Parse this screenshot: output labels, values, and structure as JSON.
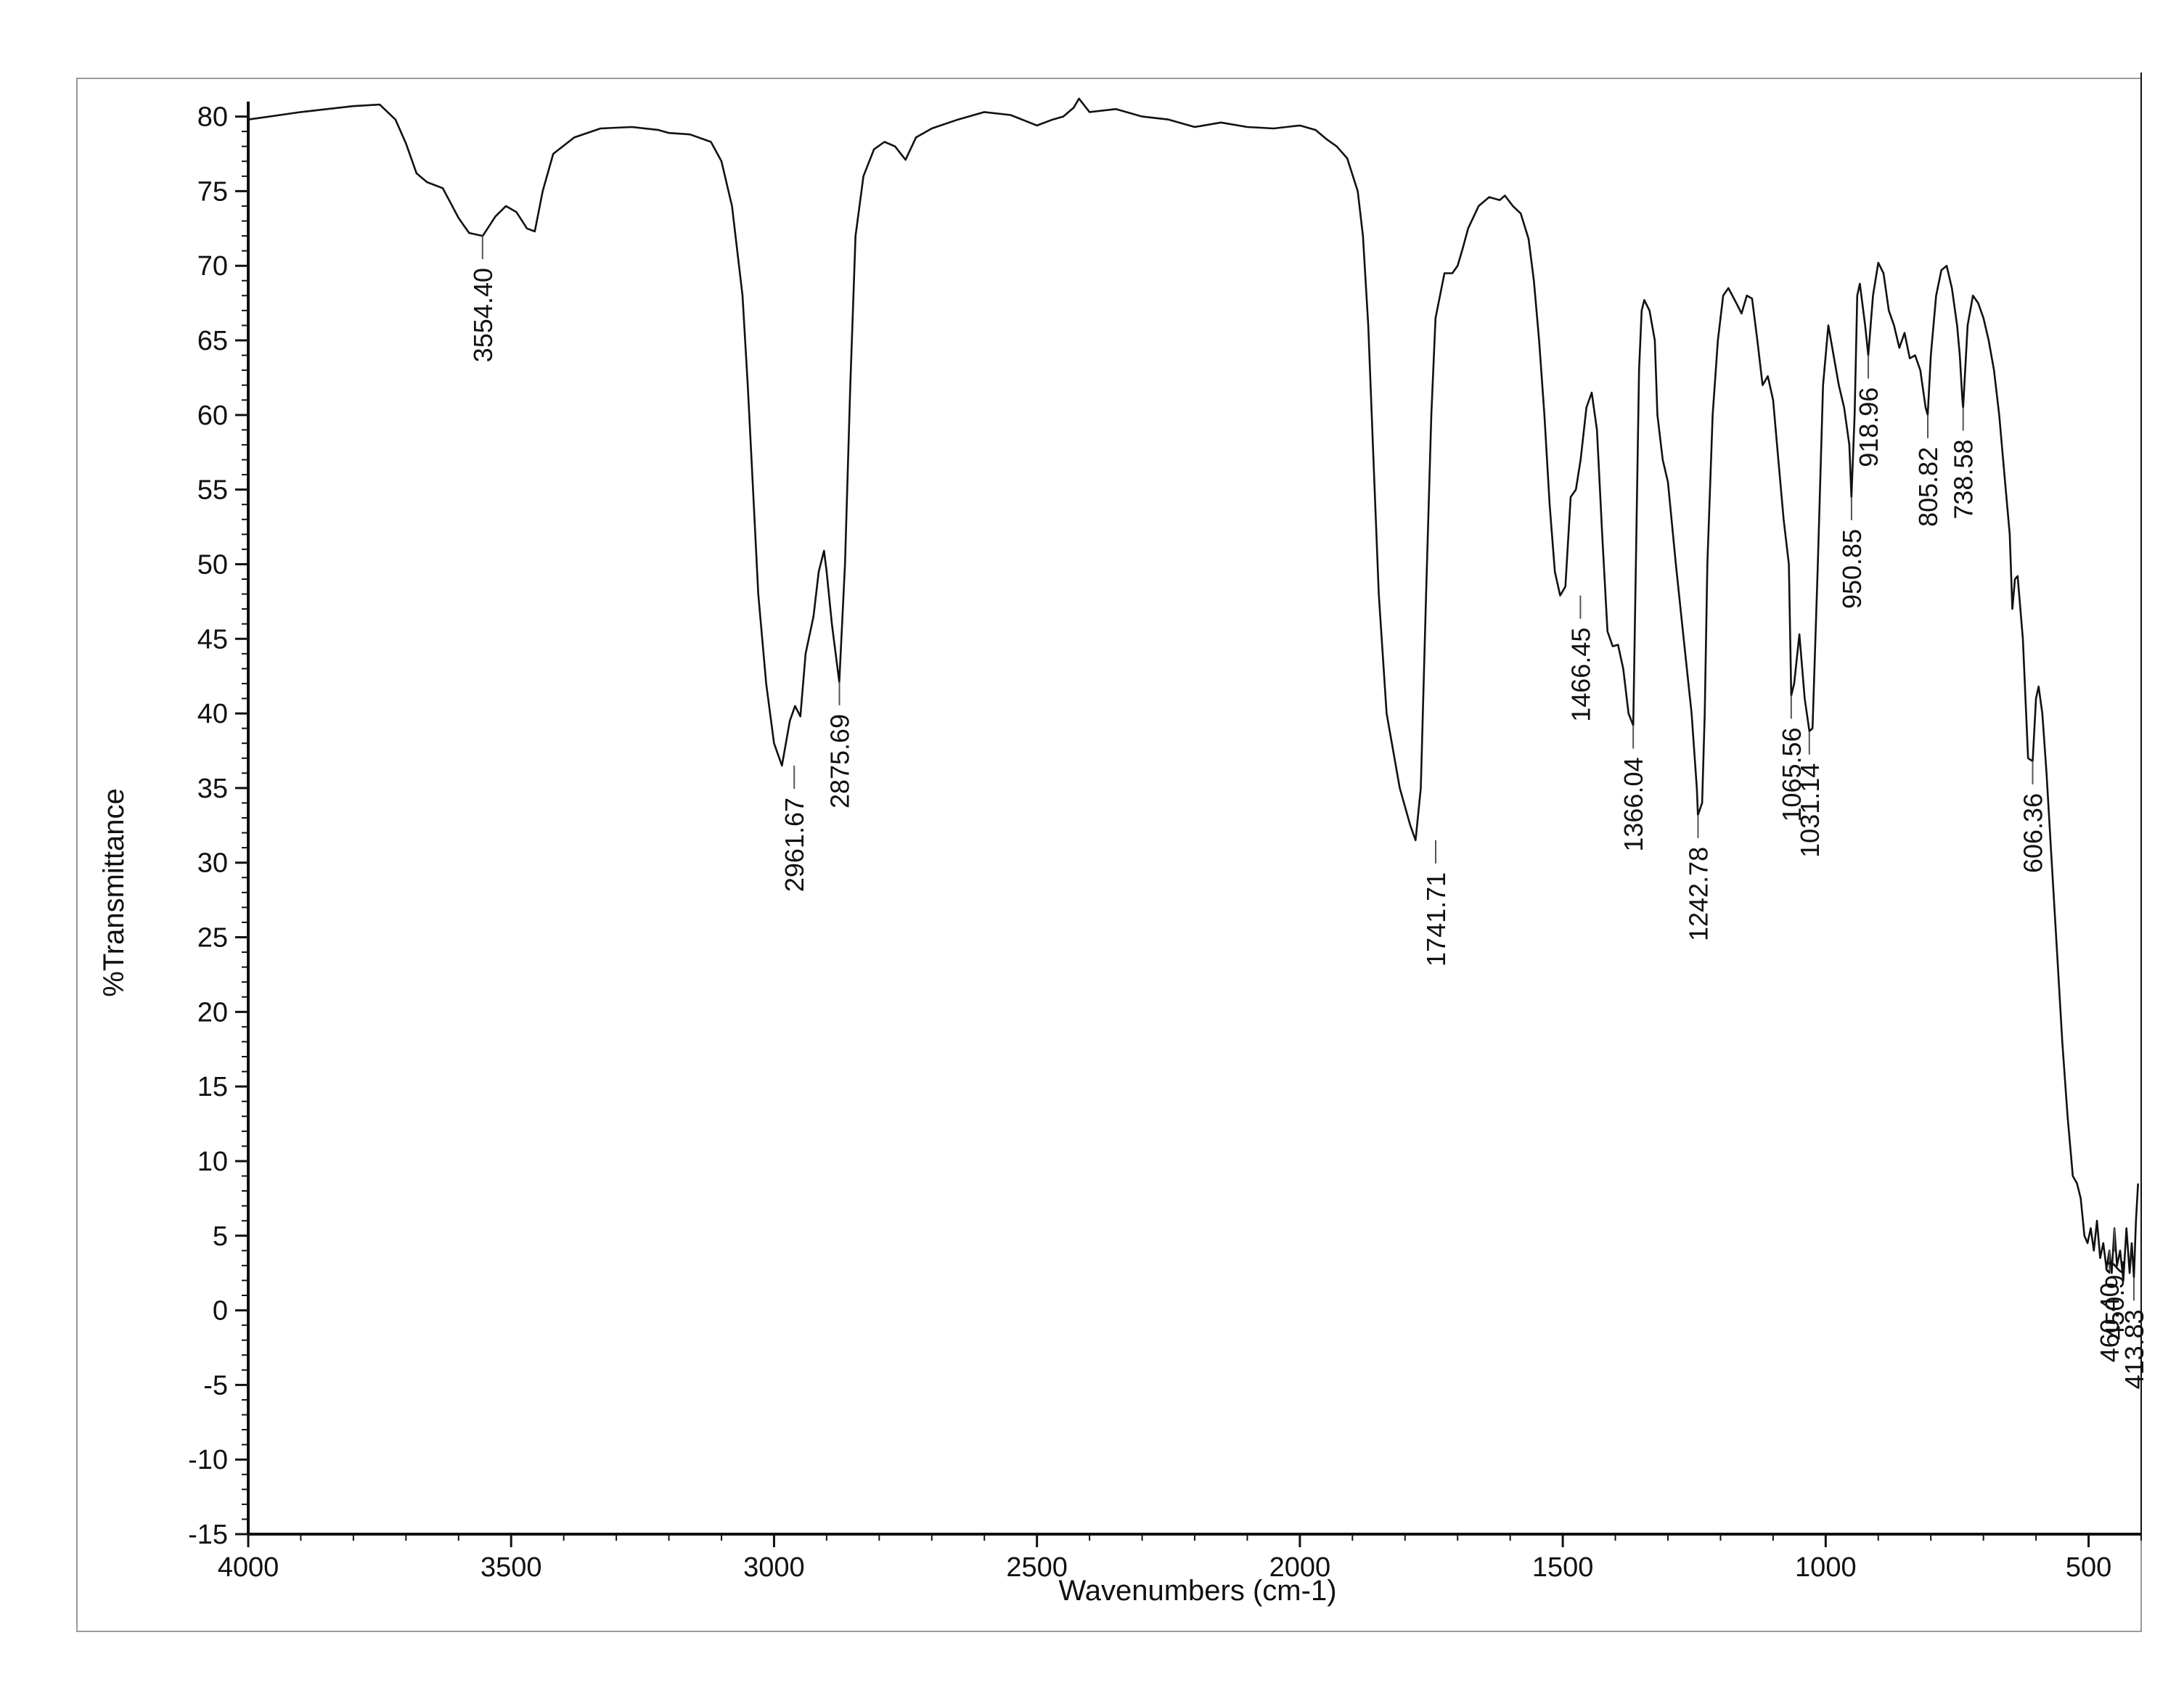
{
  "chart_data": {
    "type": "line",
    "title": "",
    "xlabel": "Wavenumbers (cm-1)",
    "ylabel": "%Transmittance",
    "xlim": [
      4000,
      400
    ],
    "ylim": [
      -15,
      81
    ],
    "x_reversed": true,
    "grid": false,
    "x_ticks": [
      "4000",
      "3500",
      "3000",
      "2500",
      "2000",
      "1500",
      "1000",
      "500"
    ],
    "y_ticks": [
      "80",
      "75",
      "70",
      "65",
      "60",
      "55",
      "50",
      "45",
      "40",
      "35",
      "30",
      "25",
      "20",
      "15",
      "10",
      "5",
      "0",
      "-5",
      "-10",
      "-15"
    ],
    "series": [
      {
        "color": "#111111",
        "points": [
          [
            4000,
            79.8
          ],
          [
            3900,
            80.3
          ],
          [
            3800,
            80.7
          ],
          [
            3750,
            80.8
          ],
          [
            3720,
            79.8
          ],
          [
            3700,
            78.2
          ],
          [
            3680,
            76.2
          ],
          [
            3660,
            75.6
          ],
          [
            3630,
            75.2
          ],
          [
            3600,
            73.2
          ],
          [
            3580,
            72.2
          ],
          [
            3554,
            72.0
          ],
          [
            3530,
            73.3
          ],
          [
            3510,
            74.0
          ],
          [
            3490,
            73.6
          ],
          [
            3470,
            72.5
          ],
          [
            3455,
            72.3
          ],
          [
            3440,
            75.0
          ],
          [
            3420,
            77.5
          ],
          [
            3380,
            78.6
          ],
          [
            3330,
            79.2
          ],
          [
            3270,
            79.3
          ],
          [
            3220,
            79.1
          ],
          [
            3200,
            78.9
          ],
          [
            3160,
            78.8
          ],
          [
            3120,
            78.3
          ],
          [
            3100,
            77.0
          ],
          [
            3080,
            74.0
          ],
          [
            3060,
            68.0
          ],
          [
            3050,
            62.0
          ],
          [
            3040,
            55.0
          ],
          [
            3030,
            48.0
          ],
          [
            3015,
            42.0
          ],
          [
            3000,
            38.0
          ],
          [
            2985,
            36.5
          ],
          [
            2970,
            39.5
          ],
          [
            2960,
            40.5
          ],
          [
            2950,
            39.8
          ],
          [
            2940,
            44.0
          ],
          [
            2925,
            46.5
          ],
          [
            2915,
            49.5
          ],
          [
            2905,
            50.9
          ],
          [
            2900,
            49.5
          ],
          [
            2890,
            46.0
          ],
          [
            2876,
            42.1
          ],
          [
            2865,
            50.0
          ],
          [
            2855,
            62.0
          ],
          [
            2845,
            72.0
          ],
          [
            2830,
            76.0
          ],
          [
            2810,
            77.8
          ],
          [
            2790,
            78.3
          ],
          [
            2770,
            78.0
          ],
          [
            2750,
            77.1
          ],
          [
            2730,
            78.6
          ],
          [
            2700,
            79.2
          ],
          [
            2650,
            79.8
          ],
          [
            2600,
            80.3
          ],
          [
            2550,
            80.1
          ],
          [
            2500,
            79.4
          ],
          [
            2470,
            79.8
          ],
          [
            2450,
            80.0
          ],
          [
            2430,
            80.6
          ],
          [
            2420,
            81.2
          ],
          [
            2400,
            80.3
          ],
          [
            2350,
            80.5
          ],
          [
            2300,
            80.0
          ],
          [
            2250,
            79.8
          ],
          [
            2200,
            79.3
          ],
          [
            2150,
            79.6
          ],
          [
            2100,
            79.3
          ],
          [
            2050,
            79.2
          ],
          [
            2000,
            79.4
          ],
          [
            1970,
            79.1
          ],
          [
            1950,
            78.5
          ],
          [
            1930,
            78.0
          ],
          [
            1910,
            77.2
          ],
          [
            1890,
            75.0
          ],
          [
            1880,
            72.0
          ],
          [
            1870,
            66.0
          ],
          [
            1860,
            57.0
          ],
          [
            1850,
            48.0
          ],
          [
            1835,
            40.0
          ],
          [
            1810,
            35.0
          ],
          [
            1790,
            32.5
          ],
          [
            1780,
            31.5
          ],
          [
            1770,
            35.0
          ],
          [
            1760,
            48.0
          ],
          [
            1750,
            60.0
          ],
          [
            1742,
            66.5
          ],
          [
            1725,
            69.5
          ],
          [
            1710,
            69.5
          ],
          [
            1700,
            70.0
          ],
          [
            1690,
            71.2
          ],
          [
            1680,
            72.5
          ],
          [
            1660,
            74.0
          ],
          [
            1640,
            74.6
          ],
          [
            1620,
            74.4
          ],
          [
            1610,
            74.7
          ],
          [
            1595,
            74.0
          ],
          [
            1580,
            73.5
          ],
          [
            1565,
            71.8
          ],
          [
            1555,
            69.0
          ],
          [
            1545,
            65.0
          ],
          [
            1535,
            60.0
          ],
          [
            1525,
            54.0
          ],
          [
            1515,
            49.5
          ],
          [
            1505,
            47.9
          ],
          [
            1495,
            48.5
          ],
          [
            1485,
            54.5
          ],
          [
            1475,
            55.0
          ],
          [
            1466,
            57.0
          ],
          [
            1455,
            60.5
          ],
          [
            1445,
            61.5
          ],
          [
            1435,
            59.0
          ],
          [
            1425,
            52.0
          ],
          [
            1415,
            45.5
          ],
          [
            1405,
            44.5
          ],
          [
            1395,
            44.6
          ],
          [
            1385,
            43.0
          ],
          [
            1375,
            40.0
          ],
          [
            1366,
            39.2
          ],
          [
            1360,
            52.0
          ],
          [
            1355,
            63.0
          ],
          [
            1350,
            67.0
          ],
          [
            1345,
            67.7
          ],
          [
            1335,
            67.0
          ],
          [
            1325,
            65.0
          ],
          [
            1320,
            60.0
          ],
          [
            1310,
            57.0
          ],
          [
            1300,
            55.5
          ],
          [
            1285,
            50.0
          ],
          [
            1270,
            45.0
          ],
          [
            1255,
            40.0
          ],
          [
            1245,
            35.0
          ],
          [
            1243,
            33.2
          ],
          [
            1235,
            34.0
          ],
          [
            1230,
            40.0
          ],
          [
            1225,
            50.0
          ],
          [
            1215,
            60.0
          ],
          [
            1205,
            65.0
          ],
          [
            1195,
            68.0
          ],
          [
            1185,
            68.5
          ],
          [
            1170,
            67.5
          ],
          [
            1160,
            66.8
          ],
          [
            1150,
            68.0
          ],
          [
            1140,
            67.8
          ],
          [
            1130,
            65.0
          ],
          [
            1120,
            62.0
          ],
          [
            1110,
            62.6
          ],
          [
            1100,
            61.0
          ],
          [
            1090,
            57.0
          ],
          [
            1080,
            53.0
          ],
          [
            1070,
            50.0
          ],
          [
            1065.5,
            41.2
          ],
          [
            1060,
            42.0
          ],
          [
            1050,
            45.3
          ],
          [
            1040,
            41.0
          ],
          [
            1031,
            38.8
          ],
          [
            1025,
            39.0
          ],
          [
            1015,
            50.0
          ],
          [
            1005,
            62.0
          ],
          [
            995,
            66.0
          ],
          [
            985,
            64.0
          ],
          [
            975,
            62.0
          ],
          [
            965,
            60.5
          ],
          [
            955,
            58.0
          ],
          [
            951,
            54.5
          ],
          [
            945,
            60.0
          ],
          [
            940,
            68.0
          ],
          [
            935,
            68.8
          ],
          [
            925,
            66.0
          ],
          [
            919,
            64.0
          ],
          [
            910,
            68.0
          ],
          [
            900,
            70.2
          ],
          [
            890,
            69.5
          ],
          [
            880,
            67.0
          ],
          [
            870,
            66.0
          ],
          [
            860,
            64.5
          ],
          [
            850,
            65.5
          ],
          [
            840,
            63.8
          ],
          [
            830,
            64.0
          ],
          [
            820,
            63.0
          ],
          [
            810,
            60.5
          ],
          [
            806,
            60.0
          ],
          [
            800,
            64.0
          ],
          [
            790,
            68.0
          ],
          [
            780,
            69.7
          ],
          [
            770,
            70.0
          ],
          [
            760,
            68.5
          ],
          [
            750,
            66.0
          ],
          [
            745,
            64.0
          ],
          [
            740,
            61.0
          ],
          [
            738.6,
            60.5
          ],
          [
            730,
            66.0
          ],
          [
            720,
            68.0
          ],
          [
            710,
            67.5
          ],
          [
            700,
            66.5
          ],
          [
            690,
            65.0
          ],
          [
            680,
            63.0
          ],
          [
            670,
            60.0
          ],
          [
            660,
            56.0
          ],
          [
            650,
            52.0
          ],
          [
            645,
            47.0
          ],
          [
            640,
            49.0
          ],
          [
            635,
            49.2
          ],
          [
            625,
            45.0
          ],
          [
            615,
            37.0
          ],
          [
            606.4,
            36.8
          ],
          [
            600,
            41.0
          ],
          [
            595,
            41.8
          ],
          [
            588,
            40.0
          ],
          [
            580,
            36.0
          ],
          [
            570,
            30.0
          ],
          [
            560,
            24.0
          ],
          [
            550,
            18.0
          ],
          [
            540,
            13.0
          ],
          [
            530,
            9.0
          ],
          [
            522,
            8.5
          ],
          [
            515,
            7.5
          ],
          [
            508,
            5.0
          ],
          [
            502,
            4.5
          ],
          [
            496,
            5.5
          ],
          [
            490,
            4.0
          ],
          [
            484,
            6.0
          ],
          [
            478,
            3.5
          ],
          [
            472,
            4.5
          ],
          [
            466,
            2.8
          ],
          [
            460.4,
            4.0
          ],
          [
            456,
            2.5
          ],
          [
            450.9,
            5.5
          ],
          [
            446,
            3.0
          ],
          [
            440,
            4.0
          ],
          [
            434,
            2.0
          ],
          [
            428,
            5.5
          ],
          [
            422,
            2.5
          ],
          [
            418,
            4.5
          ],
          [
            413.8,
            2.2
          ],
          [
            410,
            6.0
          ],
          [
            406,
            8.5
          ]
        ]
      }
    ],
    "annotations": [
      {
        "label": "3554.40",
        "x": 3554.4,
        "y": 72.0
      },
      {
        "label": "2961.67",
        "x": 2961.67,
        "y": 36.5
      },
      {
        "label": "2875.69",
        "x": 2875.69,
        "y": 42.1
      },
      {
        "label": "1741.71",
        "x": 1741.71,
        "y": 31.5
      },
      {
        "label": "1466.45",
        "x": 1466.45,
        "y": 47.9
      },
      {
        "label": "1366.04",
        "x": 1366.04,
        "y": 39.2
      },
      {
        "label": "1242.78",
        "x": 1242.78,
        "y": 33.2
      },
      {
        "label": "1065.56",
        "x": 1065.56,
        "y": 41.2
      },
      {
        "label": "1031.14",
        "x": 1031.14,
        "y": 38.8
      },
      {
        "label": "950.85",
        "x": 950.85,
        "y": 54.5
      },
      {
        "label": "918.96",
        "x": 918.96,
        "y": 64.0
      },
      {
        "label": "805.82",
        "x": 805.82,
        "y": 60.0
      },
      {
        "label": "738.58",
        "x": 738.58,
        "y": 60.5
      },
      {
        "label": "606.36",
        "x": 606.36,
        "y": 36.8
      },
      {
        "label": "460.40",
        "x": 460.4,
        "y": 4.0
      },
      {
        "label": "450.92",
        "x": 450.92,
        "y": 5.5
      },
      {
        "label": "413.83",
        "x": 413.83,
        "y": 2.2
      }
    ]
  }
}
